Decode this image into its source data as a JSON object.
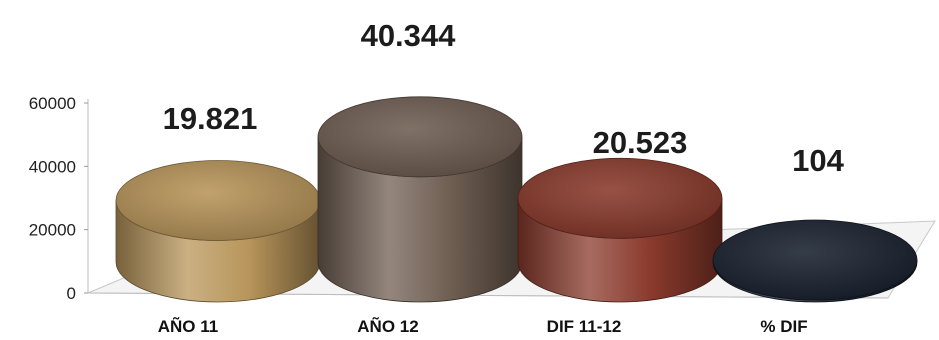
{
  "chart_data": {
    "type": "bar",
    "style": "3d-cylinder",
    "categories": [
      "AÑO 11",
      "AÑO 12",
      "DIF 11-12",
      "% DIF"
    ],
    "values": [
      19821,
      40344,
      20523,
      104
    ],
    "data_labels": [
      "19.821",
      "40.344",
      "20.523",
      "104"
    ],
    "colors": [
      "#b8955a",
      "#6f5e52",
      "#8a3a2c",
      "#1a2230"
    ],
    "y_ticks": [
      "0",
      "20000",
      "40000",
      "60000"
    ],
    "ylim": [
      0,
      60000
    ],
    "grid": false,
    "legend": "none"
  }
}
